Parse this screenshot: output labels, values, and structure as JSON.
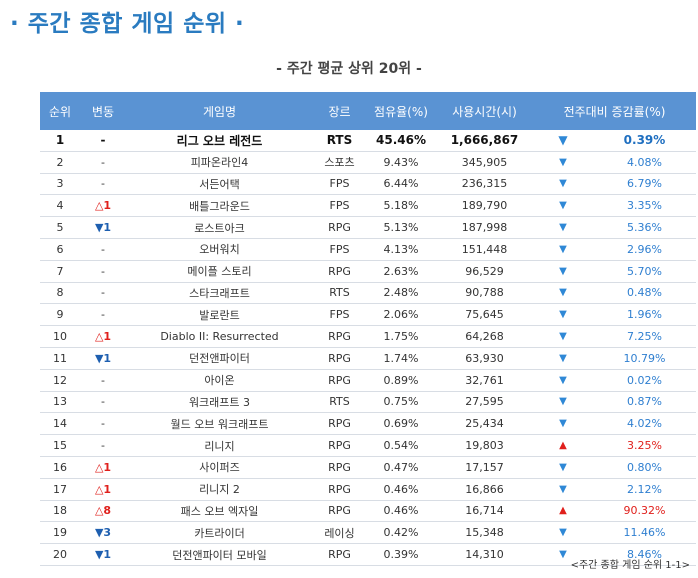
{
  "title": "· 주간 종합 게임 순위 ·",
  "subtitle": "- 주간 평균 상위 20위 -",
  "columns": [
    "순위",
    "변동",
    "게임명",
    "장르",
    "점유율(%)",
    "사용시간(시)",
    "전주대비 증감률(%)"
  ],
  "rows": [
    {
      "rank": "1",
      "move": "-",
      "move_dir": "none",
      "name": "리그 오브 레전드",
      "genre": "RTS",
      "share": "45.46%",
      "hours": "1,666,867",
      "trend": "down",
      "change": "0.39%"
    },
    {
      "rank": "2",
      "move": "-",
      "move_dir": "none",
      "name": "피파온라인4",
      "genre": "스포츠",
      "share": "9.43%",
      "hours": "345,905",
      "trend": "down",
      "change": "4.08%"
    },
    {
      "rank": "3",
      "move": "-",
      "move_dir": "none",
      "name": "서든어택",
      "genre": "FPS",
      "share": "6.44%",
      "hours": "236,315",
      "trend": "down",
      "change": "6.79%"
    },
    {
      "rank": "4",
      "move": "△1",
      "move_dir": "up",
      "name": "배틀그라운드",
      "genre": "FPS",
      "share": "5.18%",
      "hours": "189,790",
      "trend": "down",
      "change": "3.35%"
    },
    {
      "rank": "5",
      "move": "▼1",
      "move_dir": "down",
      "name": "로스트아크",
      "genre": "RPG",
      "share": "5.13%",
      "hours": "187,998",
      "trend": "down",
      "change": "5.36%"
    },
    {
      "rank": "6",
      "move": "-",
      "move_dir": "none",
      "name": "오버워치",
      "genre": "FPS",
      "share": "4.13%",
      "hours": "151,448",
      "trend": "down",
      "change": "2.96%"
    },
    {
      "rank": "7",
      "move": "-",
      "move_dir": "none",
      "name": "메이플 스토리",
      "genre": "RPG",
      "share": "2.63%",
      "hours": "96,529",
      "trend": "down",
      "change": "5.70%"
    },
    {
      "rank": "8",
      "move": "-",
      "move_dir": "none",
      "name": "스타크래프트",
      "genre": "RTS",
      "share": "2.48%",
      "hours": "90,788",
      "trend": "down",
      "change": "0.48%"
    },
    {
      "rank": "9",
      "move": "-",
      "move_dir": "none",
      "name": "발로란트",
      "genre": "FPS",
      "share": "2.06%",
      "hours": "75,645",
      "trend": "down",
      "change": "1.96%"
    },
    {
      "rank": "10",
      "move": "△1",
      "move_dir": "up",
      "name": "Diablo II: Resurrected",
      "genre": "RPG",
      "share": "1.75%",
      "hours": "64,268",
      "trend": "down",
      "change": "7.25%"
    },
    {
      "rank": "11",
      "move": "▼1",
      "move_dir": "down",
      "name": "던전앤파이터",
      "genre": "RPG",
      "share": "1.74%",
      "hours": "63,930",
      "trend": "down",
      "change": "10.79%"
    },
    {
      "rank": "12",
      "move": "-",
      "move_dir": "none",
      "name": "아이온",
      "genre": "RPG",
      "share": "0.89%",
      "hours": "32,761",
      "trend": "down",
      "change": "0.02%"
    },
    {
      "rank": "13",
      "move": "-",
      "move_dir": "none",
      "name": "워크래프트 3",
      "genre": "RTS",
      "share": "0.75%",
      "hours": "27,595",
      "trend": "down",
      "change": "0.87%"
    },
    {
      "rank": "14",
      "move": "-",
      "move_dir": "none",
      "name": "월드 오브 워크래프트",
      "genre": "RPG",
      "share": "0.69%",
      "hours": "25,434",
      "trend": "down",
      "change": "4.02%"
    },
    {
      "rank": "15",
      "move": "-",
      "move_dir": "none",
      "name": "리니지",
      "genre": "RPG",
      "share": "0.54%",
      "hours": "19,803",
      "trend": "up",
      "change": "3.25%"
    },
    {
      "rank": "16",
      "move": "△1",
      "move_dir": "up",
      "name": "사이퍼즈",
      "genre": "RPG",
      "share": "0.47%",
      "hours": "17,157",
      "trend": "down",
      "change": "0.80%"
    },
    {
      "rank": "17",
      "move": "△1",
      "move_dir": "up",
      "name": "리니지 2",
      "genre": "RPG",
      "share": "0.46%",
      "hours": "16,866",
      "trend": "down",
      "change": "2.12%"
    },
    {
      "rank": "18",
      "move": "△8",
      "move_dir": "up",
      "name": "패스 오브 엑자일",
      "genre": "RPG",
      "share": "0.46%",
      "hours": "16,714",
      "trend": "up",
      "change": "90.32%"
    },
    {
      "rank": "19",
      "move": "▼3",
      "move_dir": "down",
      "name": "카트라이더",
      "genre": "레이싱",
      "share": "0.42%",
      "hours": "15,348",
      "trend": "down",
      "change": "11.46%"
    },
    {
      "rank": "20",
      "move": "▼1",
      "move_dir": "down",
      "name": "던전앤파이터 모바일",
      "genre": "RPG",
      "share": "0.39%",
      "hours": "14,310",
      "trend": "down",
      "change": "8.46%"
    }
  ],
  "trend_glyphs": {
    "up": "▲",
    "down": "▼"
  },
  "colors": {
    "accent": "#2a7bc0",
    "header_bg": "#5a93d3",
    "up": "#e0201c",
    "down": "#2f88d6"
  },
  "caption": "<주간 종합 게임 순위 1-1>"
}
